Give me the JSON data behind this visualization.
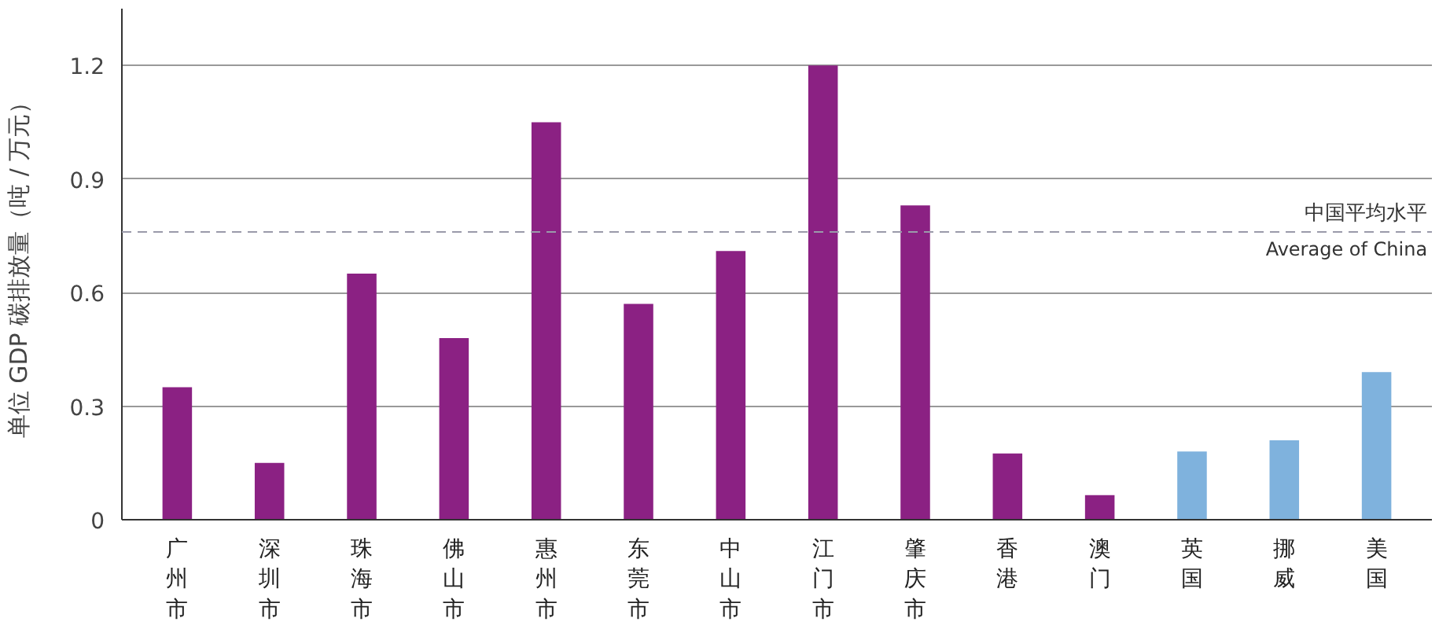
{
  "chart_data": {
    "type": "bar",
    "ylabel": "单位 GDP 碳排放量（吨 / 万元）",
    "categories": [
      "广州市",
      "深圳市",
      "珠海市",
      "佛山市",
      "惠州市",
      "东莞市",
      "中山市",
      "江门市",
      "肇庆市",
      "香港",
      "澳门",
      "英国",
      "挪威",
      "美国"
    ],
    "values": [
      0.35,
      0.15,
      0.65,
      0.48,
      1.05,
      0.57,
      0.71,
      1.2,
      0.83,
      0.175,
      0.065,
      0.18,
      0.21,
      0.39
    ],
    "colors": [
      "#8b2183",
      "#8b2183",
      "#8b2183",
      "#8b2183",
      "#8b2183",
      "#8b2183",
      "#8b2183",
      "#8b2183",
      "#8b2183",
      "#8b2183",
      "#8b2183",
      "#7fb2dd",
      "#7fb2dd",
      "#7fb2dd"
    ],
    "ylim": [
      0,
      1.35
    ],
    "yticks": [
      0,
      0.3,
      0.6,
      0.9,
      1.2
    ],
    "grid": "y",
    "ref_lines": [
      {
        "axis": "y",
        "value": 0.76,
        "label": "中国平均水平\nAverage of China",
        "color": "#9a9aaa",
        "line_style": "dashed"
      }
    ]
  }
}
